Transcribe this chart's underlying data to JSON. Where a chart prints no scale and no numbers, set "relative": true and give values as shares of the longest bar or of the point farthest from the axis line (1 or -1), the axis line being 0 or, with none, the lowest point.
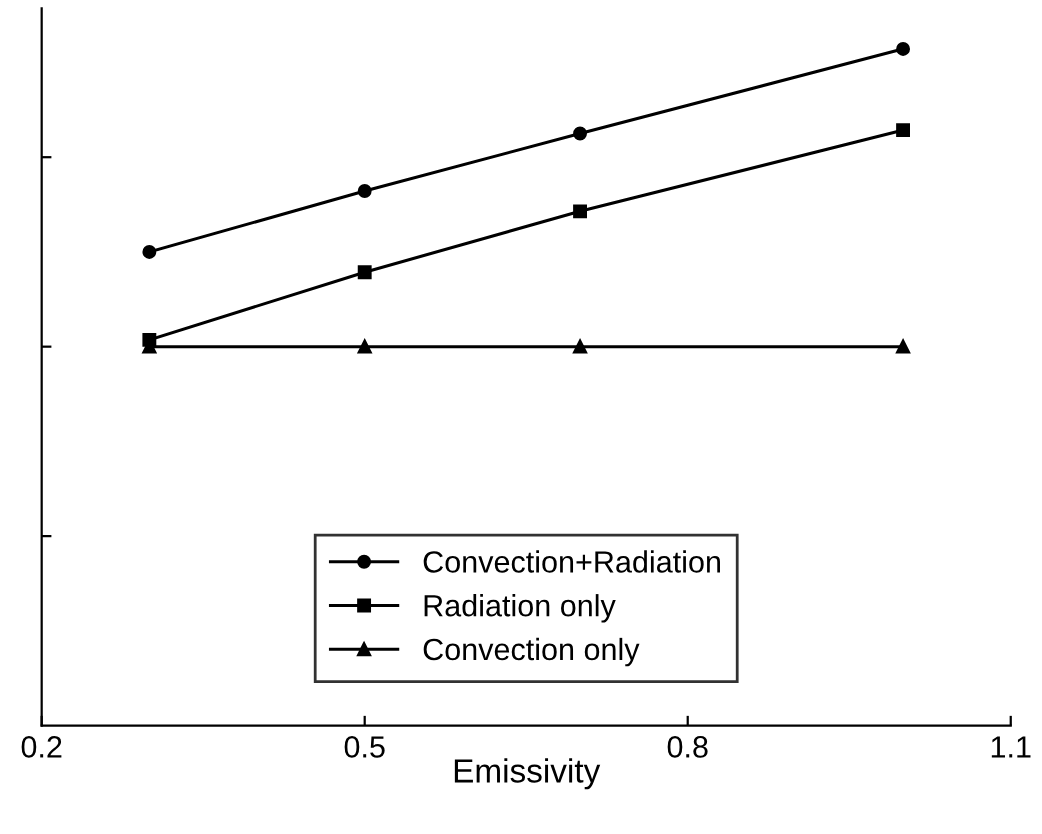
{
  "chart_data": {
    "type": "line",
    "xlabel": "Emissivity",
    "relative": true,
    "x": [
      0.3,
      0.5,
      0.7,
      1.0
    ],
    "xlim": [
      0.2,
      1.1
    ],
    "xticks": [
      0.2,
      0.5,
      0.8,
      1.1
    ],
    "series": [
      {
        "name": "Convection+Radiation",
        "color": "#000000",
        "marker": "circle",
        "values": [
          0.7,
          0.79,
          0.875,
          1.0
        ]
      },
      {
        "name": "Radiation only",
        "color": "#000000",
        "marker": "square",
        "values": [
          0.57,
          0.67,
          0.76,
          0.88
        ]
      },
      {
        "name": "Convection only",
        "color": "#000000",
        "marker": "triangle",
        "values": [
          0.56,
          0.56,
          0.56,
          0.56
        ]
      }
    ],
    "legend": "bottom",
    "grid": false,
    "line_style": "solid"
  }
}
